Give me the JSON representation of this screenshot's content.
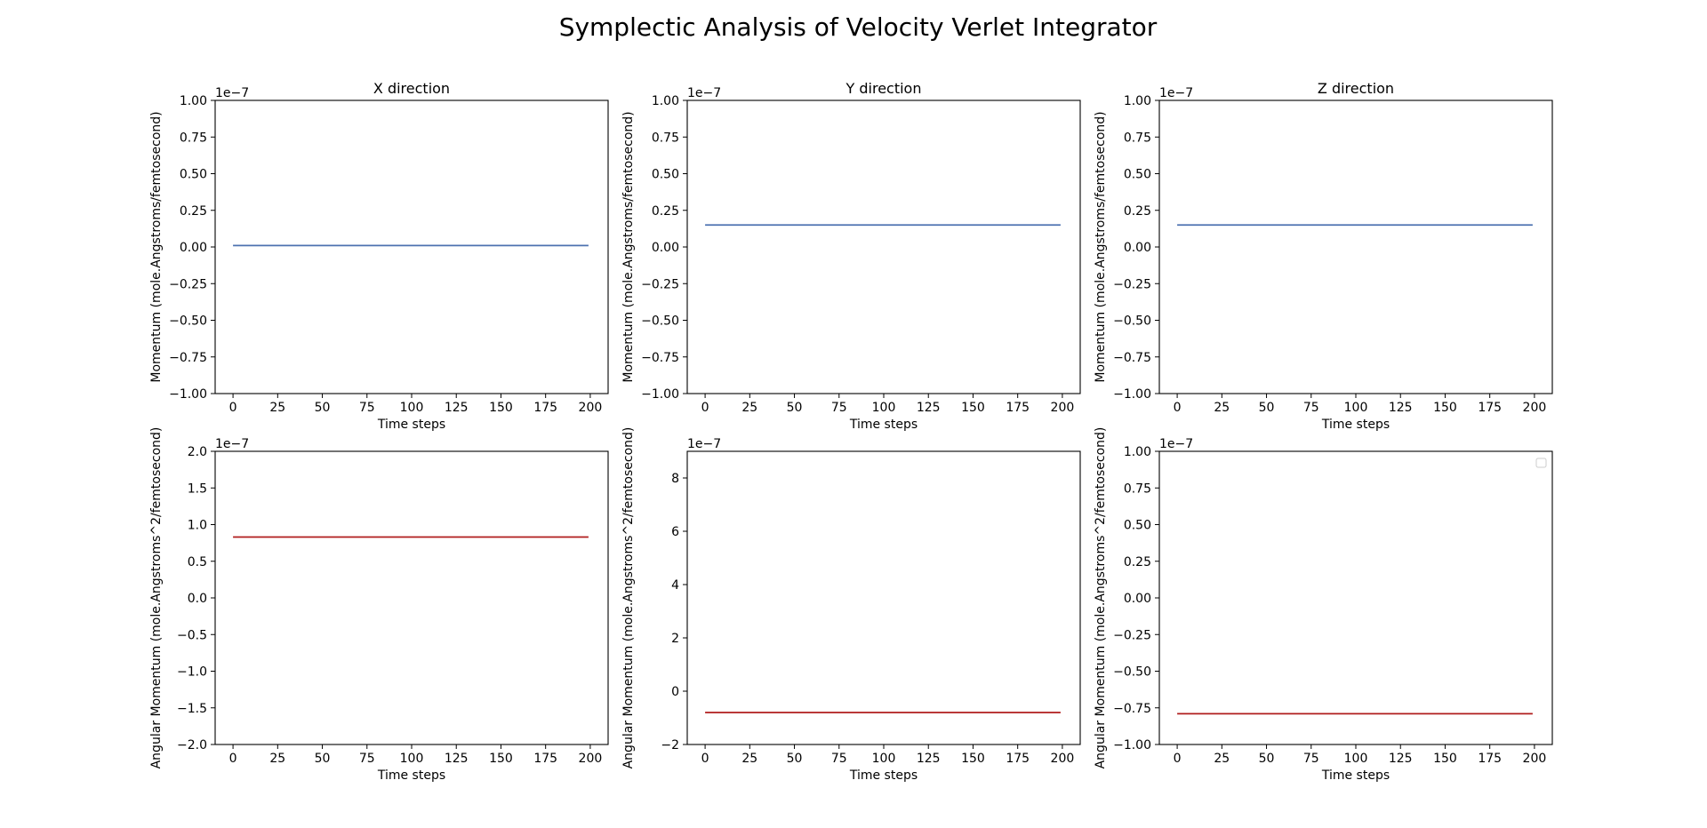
{
  "figure": {
    "suptitle": "Symplectic Analysis of Velocity Verlet Integrator"
  },
  "colors": {
    "momentum_line": "#4c72b0",
    "angular_line": "#b01c1c",
    "axes": "#000000"
  },
  "chart_data": [
    {
      "type": "line",
      "title": "X direction",
      "xlabel": "Time steps",
      "ylabel": "Momentum (mole.Angstroms/femtosecond)",
      "offset_text": "1e−7",
      "xlim": [
        -10,
        210
      ],
      "ylim": [
        -1.0,
        1.0
      ],
      "xticks": [
        0,
        25,
        50,
        75,
        100,
        125,
        150,
        175,
        200
      ],
      "xticklabels": [
        "0",
        "25",
        "50",
        "75",
        "100",
        "125",
        "150",
        "175",
        "200"
      ],
      "yticks": [
        -1.0,
        -0.75,
        -0.5,
        -0.25,
        0.0,
        0.25,
        0.5,
        0.75,
        1.0
      ],
      "yticklabels": [
        "−1.00",
        "−0.75",
        "−0.50",
        "−0.25",
        "0.00",
        "0.25",
        "0.50",
        "0.75",
        "1.00"
      ],
      "series": [
        {
          "x": [
            0,
            199
          ],
          "y": [
            0.01,
            0.01
          ],
          "color": "#4c72b0"
        }
      ],
      "legend": false
    },
    {
      "type": "line",
      "title": "Y direction",
      "xlabel": "Time steps",
      "ylabel": "Momentum (mole.Angstroms/femtosecond)",
      "offset_text": "1e−7",
      "xlim": [
        -10,
        210
      ],
      "ylim": [
        -1.0,
        1.0
      ],
      "xticks": [
        0,
        25,
        50,
        75,
        100,
        125,
        150,
        175,
        200
      ],
      "xticklabels": [
        "0",
        "25",
        "50",
        "75",
        "100",
        "125",
        "150",
        "175",
        "200"
      ],
      "yticks": [
        -1.0,
        -0.75,
        -0.5,
        -0.25,
        0.0,
        0.25,
        0.5,
        0.75,
        1.0
      ],
      "yticklabels": [
        "−1.00",
        "−0.75",
        "−0.50",
        "−0.25",
        "0.00",
        "0.25",
        "0.50",
        "0.75",
        "1.00"
      ],
      "series": [
        {
          "x": [
            0,
            199
          ],
          "y": [
            0.15,
            0.15
          ],
          "color": "#4c72b0"
        }
      ],
      "legend": false
    },
    {
      "type": "line",
      "title": "Z direction",
      "xlabel": "Time steps",
      "ylabel": "Momentum (mole.Angstroms/femtosecond)",
      "offset_text": "1e−7",
      "xlim": [
        -10,
        210
      ],
      "ylim": [
        -1.0,
        1.0
      ],
      "xticks": [
        0,
        25,
        50,
        75,
        100,
        125,
        150,
        175,
        200
      ],
      "xticklabels": [
        "0",
        "25",
        "50",
        "75",
        "100",
        "125",
        "150",
        "175",
        "200"
      ],
      "yticks": [
        -1.0,
        -0.75,
        -0.5,
        -0.25,
        0.0,
        0.25,
        0.5,
        0.75,
        1.0
      ],
      "yticklabels": [
        "−1.00",
        "−0.75",
        "−0.50",
        "−0.25",
        "0.00",
        "0.25",
        "0.50",
        "0.75",
        "1.00"
      ],
      "series": [
        {
          "x": [
            0,
            199
          ],
          "y": [
            0.15,
            0.15
          ],
          "color": "#4c72b0"
        }
      ],
      "legend": false
    },
    {
      "type": "line",
      "title": "",
      "xlabel": "Time steps",
      "ylabel": "Angular Momentum (mole.Angstroms^2/femtosecond)",
      "offset_text": "1e−7",
      "xlim": [
        -10,
        210
      ],
      "ylim": [
        -2.0,
        2.0
      ],
      "xticks": [
        0,
        25,
        50,
        75,
        100,
        125,
        150,
        175,
        200
      ],
      "xticklabels": [
        "0",
        "25",
        "50",
        "75",
        "100",
        "125",
        "150",
        "175",
        "200"
      ],
      "yticks": [
        -2.0,
        -1.5,
        -1.0,
        -0.5,
        0.0,
        0.5,
        1.0,
        1.5,
        2.0
      ],
      "yticklabels": [
        "−2.0",
        "−1.5",
        "−1.0",
        "−0.5",
        "0.0",
        "0.5",
        "1.0",
        "1.5",
        "2.0"
      ],
      "series": [
        {
          "x": [
            0,
            199
          ],
          "y": [
            0.83,
            0.83
          ],
          "color": "#b01c1c"
        }
      ],
      "legend": false
    },
    {
      "type": "line",
      "title": "",
      "xlabel": "Time steps",
      "ylabel": "Angular Momentum (mole.Angstroms^2/femtosecond)",
      "offset_text": "1e−7",
      "xlim": [
        -10,
        210
      ],
      "ylim": [
        -2.0,
        9.0
      ],
      "xticks": [
        0,
        25,
        50,
        75,
        100,
        125,
        150,
        175,
        200
      ],
      "xticklabels": [
        "0",
        "25",
        "50",
        "75",
        "100",
        "125",
        "150",
        "175",
        "200"
      ],
      "yticks": [
        -2,
        0,
        2,
        4,
        6,
        8
      ],
      "yticklabels": [
        "−2",
        "0",
        "2",
        "4",
        "6",
        "8"
      ],
      "series": [
        {
          "x": [
            0,
            199
          ],
          "y": [
            -0.8,
            -0.8
          ],
          "color": "#b01c1c"
        }
      ],
      "legend": false
    },
    {
      "type": "line",
      "title": "",
      "xlabel": "Time steps",
      "ylabel": "Angular Momentum (mole.Angstroms^2/femtosecond)",
      "offset_text": "1e−7",
      "xlim": [
        -10,
        210
      ],
      "ylim": [
        -1.0,
        1.0
      ],
      "xticks": [
        0,
        25,
        50,
        75,
        100,
        125,
        150,
        175,
        200
      ],
      "xticklabels": [
        "0",
        "25",
        "50",
        "75",
        "100",
        "125",
        "150",
        "175",
        "200"
      ],
      "yticks": [
        -1.0,
        -0.75,
        -0.5,
        -0.25,
        0.0,
        0.25,
        0.5,
        0.75,
        1.0
      ],
      "yticklabels": [
        "−1.00",
        "−0.75",
        "−0.50",
        "−0.25",
        "0.00",
        "0.25",
        "0.50",
        "0.75",
        "1.00"
      ],
      "series": [
        {
          "x": [
            0,
            199
          ],
          "y": [
            -0.79,
            -0.79
          ],
          "color": "#b01c1c"
        }
      ],
      "legend": "top-right"
    }
  ]
}
